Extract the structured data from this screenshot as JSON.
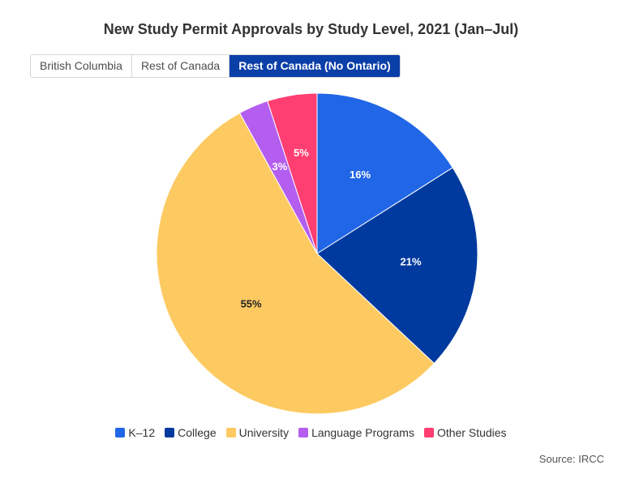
{
  "header": {
    "title": "New Study Permit Approvals by Study Level, 2021 (Jan–Jul)"
  },
  "tabs": [
    {
      "label": "British Columbia",
      "active": false
    },
    {
      "label": "Rest of Canada",
      "active": false
    },
    {
      "label": "Rest of Canada (No Ontario)",
      "active": true
    }
  ],
  "chart_data": {
    "type": "pie",
    "title": "New Study Permit Approvals by Study Level, 2021 (Jan–Jul)",
    "start_angle": "12 o'clock, clockwise",
    "slices": [
      {
        "label": "K–12",
        "value": 16,
        "display": "16%",
        "color": "#2166e6",
        "label_color": "#ffffff"
      },
      {
        "label": "College",
        "value": 21,
        "display": "21%",
        "color": "#003a9e",
        "label_color": "#ffffff"
      },
      {
        "label": "University",
        "value": 55,
        "display": "55%",
        "color": "#fdca62",
        "label_color": "#222222"
      },
      {
        "label": "Language Programs",
        "value": 3,
        "display": "3%",
        "color": "#b45ef0",
        "label_color": "#ffffff"
      },
      {
        "label": "Other Studies",
        "value": 5,
        "display": "5%",
        "color": "#ff3e71",
        "label_color": "#ffffff"
      }
    ],
    "legend_position": "bottom-center"
  },
  "footer": {
    "source": "Source: IRCC"
  }
}
